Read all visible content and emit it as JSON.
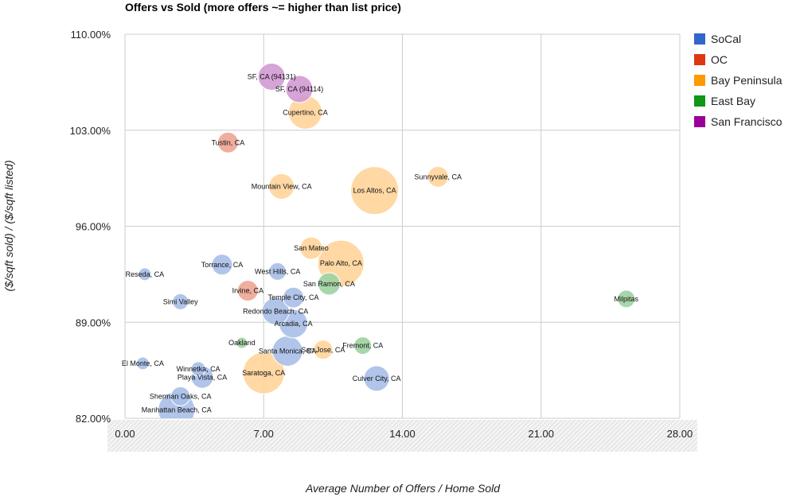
{
  "chart_data": {
    "type": "scatter",
    "subtype": "bubble",
    "title": "Offers vs Sold (more offers ~= higher than list price)",
    "xlabel": "Average Number of Offers / Home Sold",
    "ylabel": "($/sqft sold) / ($/sqft listed)",
    "xlim": [
      0,
      28
    ],
    "ylim": [
      82,
      110
    ],
    "x_ticks": [
      0,
      7,
      14,
      21,
      28
    ],
    "x_tick_labels": [
      "0.00",
      "7.00",
      "14.00",
      "21.00",
      "28.00"
    ],
    "y_ticks": [
      82,
      89,
      96,
      103,
      110
    ],
    "y_tick_labels": [
      "82.00%",
      "89.00%",
      "96.00%",
      "103.00%",
      "110.00%"
    ],
    "grid": true,
    "legend_position": "right",
    "series": [
      {
        "name": "SoCal",
        "color": "#3366cc",
        "fill": "#a9bfe8",
        "points": [
          {
            "label": "Reseda, CA",
            "x": 1.0,
            "y": 92.5,
            "r": 8
          },
          {
            "label": "Simi Valley",
            "x": 2.8,
            "y": 90.5,
            "r": 10
          },
          {
            "label": "Torrance, CA",
            "x": 4.9,
            "y": 93.2,
            "r": 13
          },
          {
            "label": "West Hills, CA",
            "x": 7.7,
            "y": 92.7,
            "r": 11
          },
          {
            "label": "Temple City, CA",
            "x": 8.5,
            "y": 90.8,
            "r": 13
          },
          {
            "label": "Redondo Beach, CA",
            "x": 7.6,
            "y": 89.8,
            "r": 17
          },
          {
            "label": "Arcadia, CA",
            "x": 8.5,
            "y": 88.9,
            "r": 18
          },
          {
            "label": "Santa Monica, CA",
            "x": 8.2,
            "y": 86.9,
            "r": 19
          },
          {
            "label": "El Monte, CA",
            "x": 0.9,
            "y": 86.0,
            "r": 8
          },
          {
            "label": "Winnetka, CA",
            "x": 3.7,
            "y": 85.6,
            "r": 9
          },
          {
            "label": "Playa Vista, CA",
            "x": 3.9,
            "y": 85.0,
            "r": 14
          },
          {
            "label": "Sherman Oaks, CA",
            "x": 2.8,
            "y": 83.6,
            "r": 12
          },
          {
            "label": "Manhattan Beach, CA",
            "x": 2.6,
            "y": 82.6,
            "r": 23
          },
          {
            "label": "Culver City, CA",
            "x": 12.7,
            "y": 84.9,
            "r": 16
          }
        ]
      },
      {
        "name": "OC",
        "color": "#dc3912",
        "fill": "#eea595",
        "points": [
          {
            "label": "Tustin, CA",
            "x": 5.2,
            "y": 102.1,
            "r": 13
          },
          {
            "label": "Irvine, CA",
            "x": 6.2,
            "y": 91.3,
            "r": 13
          }
        ]
      },
      {
        "name": "Bay Peninsula",
        "color": "#ff9900",
        "fill": "#ffd49a",
        "points": [
          {
            "label": "Cupertino, CA",
            "x": 9.1,
            "y": 104.3,
            "r": 21
          },
          {
            "label": "Mountain View, CA",
            "x": 7.9,
            "y": 98.9,
            "r": 16
          },
          {
            "label": "Los Altos, CA",
            "x": 12.6,
            "y": 98.6,
            "r": 30
          },
          {
            "label": "Sunnyvale, CA",
            "x": 15.8,
            "y": 99.6,
            "r": 13
          },
          {
            "label": "San Mateo",
            "x": 9.4,
            "y": 94.4,
            "r": 14
          },
          {
            "label": "Palo Alto, CA",
            "x": 10.9,
            "y": 93.3,
            "r": 29
          },
          {
            "label": "San Jose, CA",
            "x": 10.0,
            "y": 87.0,
            "r": 12
          },
          {
            "label": "Saratoga, CA",
            "x": 7.0,
            "y": 85.3,
            "r": 26
          }
        ]
      },
      {
        "name": "East Bay",
        "color": "#109618",
        "fill": "#9fd1a2",
        "points": [
          {
            "label": "San Ramon, CA",
            "x": 10.3,
            "y": 91.8,
            "r": 14
          },
          {
            "label": "Milpitas",
            "x": 25.3,
            "y": 90.7,
            "r": 11
          },
          {
            "label": "Fremont, CA",
            "x": 12.0,
            "y": 87.3,
            "r": 11
          },
          {
            "label": "Oakland",
            "x": 5.9,
            "y": 87.5,
            "r": 7
          }
        ]
      },
      {
        "name": "San Francisco",
        "color": "#990099",
        "fill": "#d39ad3",
        "points": [
          {
            "label": "SF, CA (94131)",
            "x": 7.4,
            "y": 106.9,
            "r": 17
          },
          {
            "label": "SF, CA (94114)",
            "x": 8.8,
            "y": 106.0,
            "r": 17
          }
        ]
      }
    ]
  }
}
